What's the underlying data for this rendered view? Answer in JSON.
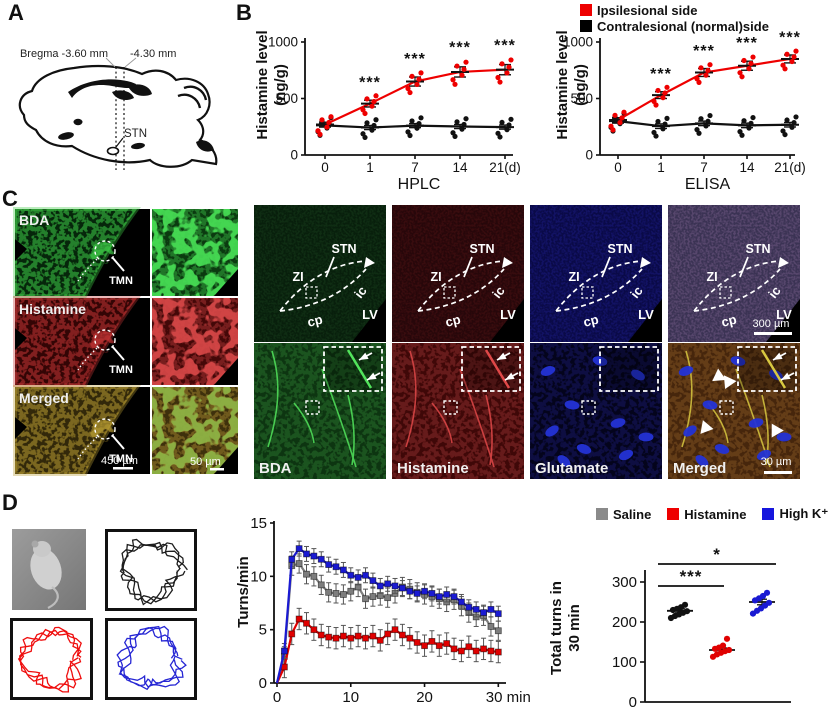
{
  "panels": {
    "a": "A",
    "b": "B",
    "c": "C",
    "d": "D"
  },
  "panel_a": {
    "bregma_label": "Bregma -3.60 mm",
    "plane_label": "-4.30 mm",
    "stn_label": "STN"
  },
  "panel_b": {
    "legend": [
      {
        "label": "Ipsilesional side",
        "color": "#ee0000"
      },
      {
        "label": "Contralesional (normal)side",
        "color": "#000000"
      }
    ]
  },
  "panel_c": {
    "left": {
      "tmn_label": "TMN",
      "rows": [
        {
          "label": "BDA",
          "base": "#06260b",
          "bright": "#3ecb46",
          "zoom_base": "#0b3a10",
          "zoom_bright": "#4ae257",
          "zoom_overlay": ""
        },
        {
          "label": "Histamine",
          "base": "#330505",
          "bright": "#c43434",
          "zoom_base": "#440808",
          "zoom_bright": "#da4a4a",
          "zoom_overlay": ""
        },
        {
          "label": "Merged",
          "base": "#32280a",
          "bright": "#b89c30",
          "zoom_base": "#3e300c",
          "zoom_bright": "#cfa83c",
          "zoom_overlay": "#49c14e",
          "big_scale": "450 µm",
          "zoom_scale": "50 µm"
        }
      ]
    },
    "right_top": {
      "labels": {
        "stn": "STN",
        "zi": "ZI",
        "ic": "ic",
        "cp": "cp",
        "lv": "LV"
      },
      "scale": "300 µm",
      "panels": [
        {
          "name": "bda-overview",
          "base": "#081f0c",
          "texture": "#1e4a24"
        },
        {
          "name": "histamine-overview",
          "base": "#27070a",
          "texture": "#5a1518"
        },
        {
          "name": "glutamate-overview",
          "base": "#0a0a48",
          "texture": "#24249a"
        },
        {
          "name": "merged-overview",
          "base": "#3b3354",
          "texture": "#8a6a9a"
        }
      ]
    },
    "right_bottom": {
      "scale": "30 µm",
      "cell_color": "#2433d6",
      "panels": [
        {
          "label": "BDA",
          "base": "#0d3511",
          "texture": "#2f7a33",
          "fiber": "#52e45c",
          "cells": false,
          "inset_fiber": true,
          "arrowheads": false,
          "scale": false
        },
        {
          "label": "Histamine",
          "base": "#3f0808",
          "texture": "#973030",
          "fiber": "#e04848",
          "cells": false,
          "inset_fiber": true,
          "arrowheads": false,
          "scale": false
        },
        {
          "label": "Glutamate",
          "base": "#04041c",
          "texture": "#1a1a70",
          "fiber": "",
          "cells": true,
          "inset_fiber": false,
          "arrowheads": false,
          "scale": false
        },
        {
          "label": "Merged",
          "base": "#46260c",
          "texture": "#8a5a28",
          "fiber": "#d8c840",
          "cells": true,
          "inset_fiber": true,
          "arrowheads": true,
          "scale": true
        }
      ]
    }
  },
  "panel_d": {
    "legend": [
      {
        "label": "Saline",
        "color": "#8a8a8a"
      },
      {
        "label": "Histamine",
        "color": "#ee0000"
      },
      {
        "label": "High K⁺",
        "color": "#1616dd"
      }
    ],
    "traces": [
      {
        "color": "#111111"
      },
      {
        "color": "#ee0000"
      },
      {
        "color": "#1a1ad2"
      }
    ]
  },
  "chart_data": [
    {
      "id": "hplc",
      "type": "line-category",
      "title": "HPLC",
      "ylabel": "Histamine level (ng/g)",
      "x_tick_labels": [
        "0",
        "1",
        "7",
        "14",
        "21(d)"
      ],
      "ylim": [
        0,
        1000
      ],
      "yticks": [
        0,
        500,
        1000
      ],
      "series": [
        {
          "name": "Ipsilesional side",
          "color": "#ee0000",
          "values": [
            270,
            455,
            650,
            735,
            755
          ],
          "sem": [
            20,
            30,
            40,
            45,
            45
          ],
          "sig": [
            "",
            "***",
            "***",
            "***",
            "***"
          ]
        },
        {
          "name": "Contralesional (normal)side",
          "color": "#111111",
          "values": [
            262,
            243,
            260,
            252,
            247
          ],
          "sem": [
            15,
            18,
            18,
            18,
            18
          ],
          "sig": [
            "",
            "",
            "",
            "",
            ""
          ]
        }
      ]
    },
    {
      "id": "elisa",
      "type": "line-category",
      "title": "ELISA",
      "ylabel": "Histamine level (ng/g)",
      "x_tick_labels": [
        "0",
        "1",
        "7",
        "14",
        "21(d)"
      ],
      "ylim": [
        0,
        1000
      ],
      "yticks": [
        0,
        500,
        1000
      ],
      "series": [
        {
          "name": "Ipsilesional side",
          "color": "#ee0000",
          "values": [
            310,
            530,
            730,
            790,
            850
          ],
          "sem": [
            20,
            30,
            35,
            40,
            35
          ],
          "sig": [
            "",
            "***",
            "***",
            "***",
            "***"
          ]
        },
        {
          "name": "Contralesional (normal)side",
          "color": "#111111",
          "values": [
            300,
            255,
            280,
            262,
            268
          ],
          "sem": [
            18,
            20,
            20,
            20,
            20
          ],
          "sig": [
            "",
            "",
            "",
            "",
            ""
          ]
        }
      ]
    },
    {
      "id": "turns",
      "type": "line-xy",
      "ylabel": "Turns/min",
      "xlim": [
        0,
        30.5
      ],
      "xticks": [
        0,
        10,
        20,
        30
      ],
      "x_unit": "min",
      "ylim": [
        0,
        15
      ],
      "yticks": [
        0,
        5,
        10,
        15
      ],
      "x": [
        0,
        1,
        2,
        3,
        4,
        5,
        6,
        7,
        8,
        9,
        10,
        11,
        12,
        13,
        14,
        15,
        16,
        17,
        18,
        19,
        20,
        21,
        22,
        23,
        24,
        25,
        26,
        27,
        28,
        29,
        30
      ],
      "series": [
        {
          "name": "Saline",
          "color": "#7d7d7d",
          "err": 0.9,
          "values": [
            0,
            2.5,
            11,
            11.2,
            10.2,
            10,
            9.2,
            8.5,
            8.4,
            8.3,
            8.6,
            9,
            7.9,
            8.1,
            8.2,
            8,
            8.4,
            9,
            8.8,
            8.5,
            8.3,
            8.1,
            7.9,
            7.6,
            7.8,
            7.2,
            6.6,
            6.2,
            6.3,
            5.3,
            4.9
          ]
        },
        {
          "name": "Histamine",
          "color": "#e00000",
          "err": 1.0,
          "values": [
            0,
            1.5,
            4.6,
            6,
            5.6,
            5,
            4.5,
            4.3,
            4.2,
            4.4,
            4.2,
            4.4,
            4.2,
            4.4,
            4,
            4.6,
            5,
            4.5,
            4.2,
            3.8,
            3.5,
            3.9,
            3.5,
            3.7,
            3.2,
            3,
            3.4,
            3,
            3.2,
            3,
            2.9
          ]
        },
        {
          "name": "High K⁺",
          "color": "#1a1ad2",
          "err": 0.7,
          "values": [
            0,
            3,
            11.6,
            12.6,
            12.1,
            11.9,
            11.6,
            11.1,
            10.9,
            10.6,
            10.1,
            9.9,
            10.1,
            9.6,
            9.1,
            9.3,
            9.1,
            8.9,
            8.6,
            8.4,
            8.6,
            8.4,
            8.1,
            8.3,
            8.1,
            7.6,
            7.1,
            6.9,
            6.6,
            6.9,
            6.5
          ]
        }
      ]
    },
    {
      "id": "total-turns",
      "type": "scatter-groups",
      "ylabel": "Total turns in 30 min",
      "ylim": [
        0,
        300
      ],
      "yticks": [
        0,
        100,
        200,
        300
      ],
      "groups": [
        {
          "name": "Saline",
          "color": "#111111",
          "mean": 228,
          "sem": 5,
          "points": [
            210,
            215,
            219,
            223,
            227,
            230,
            233,
            237,
            243
          ]
        },
        {
          "name": "Histamine",
          "color": "#e00000",
          "mean": 130,
          "sem": 5,
          "points": [
            113,
            119,
            123,
            127,
            130,
            133,
            136,
            141,
            158
          ]
        },
        {
          "name": "High K⁺",
          "color": "#1a1ad2",
          "mean": 250,
          "sem": 7,
          "points": [
            221,
            228,
            234,
            241,
            248,
            254,
            259,
            265,
            273
          ]
        }
      ],
      "sig": [
        {
          "from": 0,
          "to": 1,
          "label": "***",
          "y": 290
        },
        {
          "from": 0,
          "to": 2,
          "label": "*",
          "y": 345
        }
      ]
    }
  ]
}
